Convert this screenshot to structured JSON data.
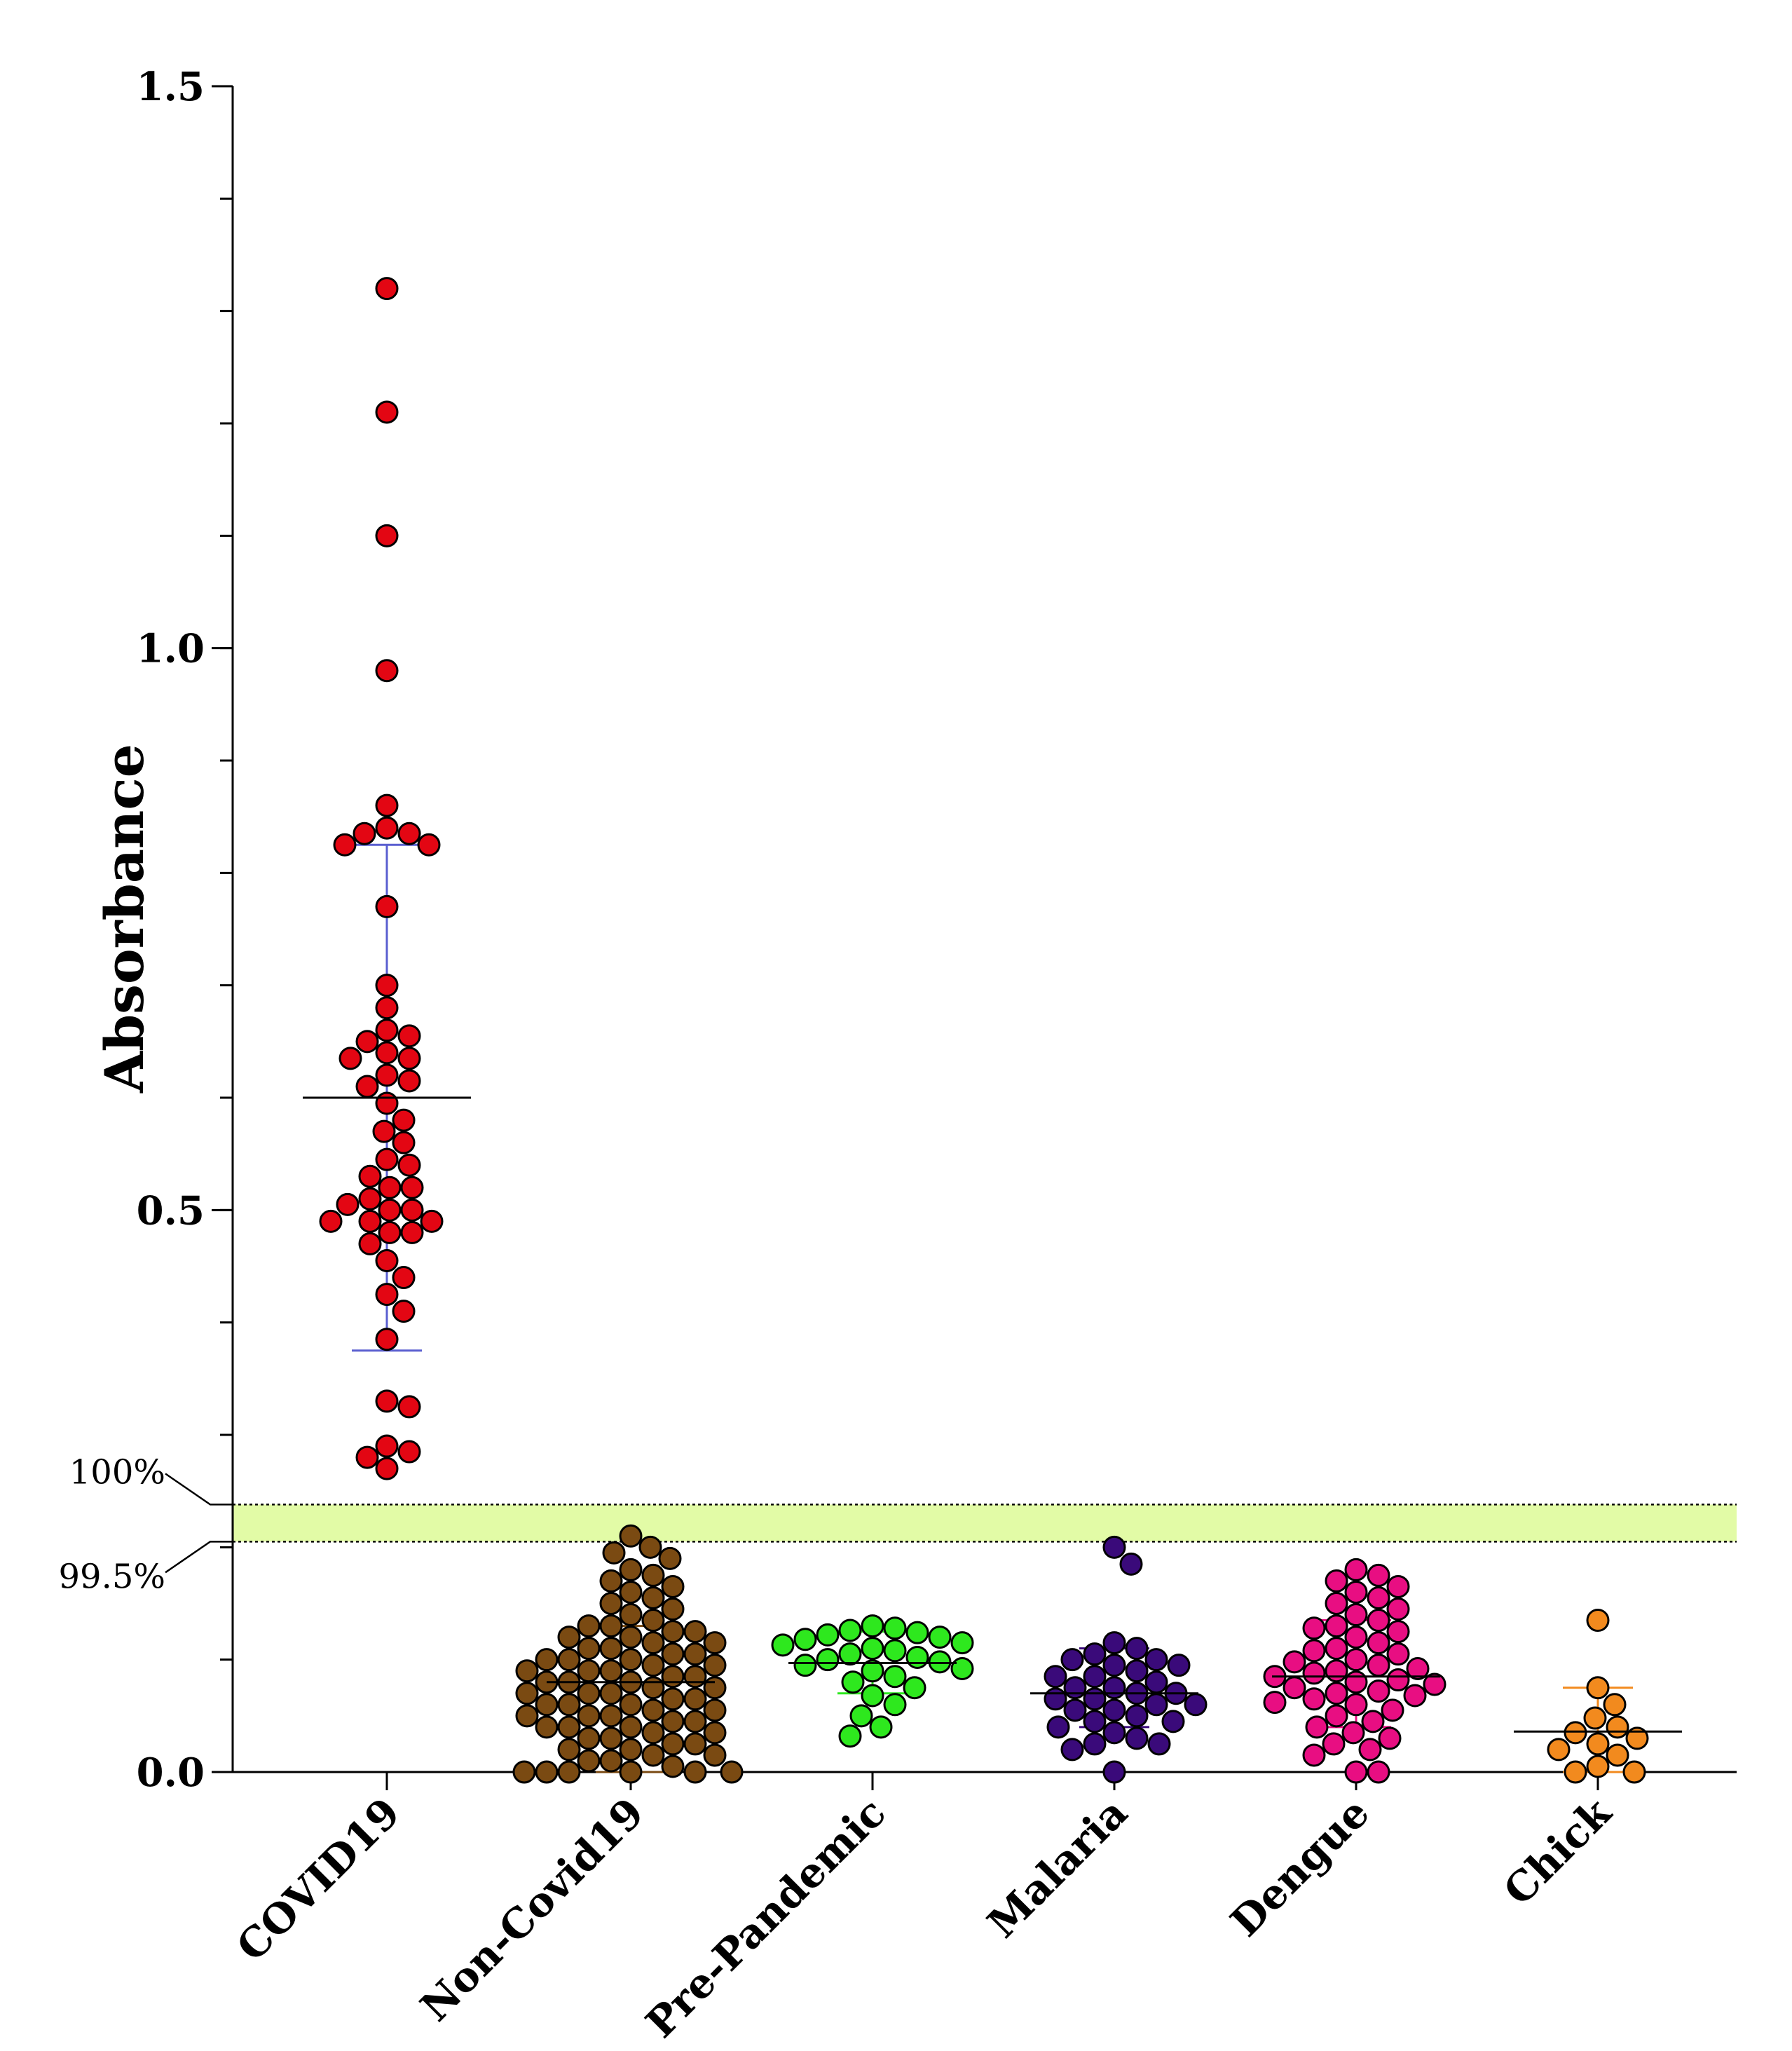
{
  "chart_data": {
    "type": "scatter",
    "title": "",
    "xlabel": "",
    "ylabel": "Absorbance",
    "ylim": [
      0,
      1.5
    ],
    "yticks": [
      {
        "value": 0.0,
        "label": "0.0"
      },
      {
        "value": 0.5,
        "label": "0.5"
      },
      {
        "value": 1.0,
        "label": "1.0"
      },
      {
        "value": 1.5,
        "label": "1.5"
      }
    ],
    "minor_tick_step": 0.1,
    "threshold_band": {
      "lower": 0.205,
      "upper": 0.238,
      "lower_label": "99.5%",
      "upper_label": "100%",
      "color": "#e2fba6"
    },
    "categories": [
      "COVID19",
      "Non-Covid19",
      "Pre-Pandemic",
      "Malaria",
      "Dengue",
      "Chick"
    ],
    "series": [
      {
        "name": "COVID19",
        "color": "#e30613",
        "mean": 0.6,
        "error_low": 0.375,
        "error_high": 0.825,
        "error_color": "#5a5fd0",
        "values": [
          1.32,
          1.21,
          1.1,
          0.98,
          0.86,
          0.835,
          0.835,
          0.84,
          0.825,
          0.825,
          0.77,
          0.7,
          0.68,
          0.66,
          0.655,
          0.65,
          0.64,
          0.635,
          0.635,
          0.62,
          0.615,
          0.61,
          0.595,
          0.58,
          0.57,
          0.56,
          0.545,
          0.54,
          0.53,
          0.52,
          0.52,
          0.51,
          0.505,
          0.5,
          0.5,
          0.49,
          0.49,
          0.49,
          0.48,
          0.48,
          0.47,
          0.455,
          0.44,
          0.425,
          0.41,
          0.385,
          0.33,
          0.325,
          0.29,
          0.285,
          0.28,
          0.27
        ]
      },
      {
        "name": "Non-Covid19",
        "color": "#7a4a12",
        "mean": 0.08,
        "error_low": 0.0,
        "error_high": 0.13,
        "error_color": "#7a4a12",
        "values": [
          0.21,
          0.2,
          0.195,
          0.19,
          0.18,
          0.175,
          0.17,
          0.165,
          0.16,
          0.155,
          0.15,
          0.145,
          0.14,
          0.135,
          0.13,
          0.13,
          0.125,
          0.125,
          0.12,
          0.12,
          0.115,
          0.115,
          0.11,
          0.11,
          0.105,
          0.105,
          0.1,
          0.1,
          0.1,
          0.095,
          0.095,
          0.09,
          0.09,
          0.09,
          0.085,
          0.085,
          0.08,
          0.08,
          0.08,
          0.075,
          0.075,
          0.07,
          0.07,
          0.07,
          0.065,
          0.065,
          0.06,
          0.06,
          0.06,
          0.055,
          0.055,
          0.05,
          0.05,
          0.05,
          0.045,
          0.045,
          0.04,
          0.04,
          0.04,
          0.035,
          0.035,
          0.03,
          0.03,
          0.025,
          0.025,
          0.02,
          0.02,
          0.015,
          0.015,
          0.01,
          0.01,
          0.005,
          0.0,
          0.0,
          0.0,
          0.0,
          0.0,
          0.0
        ]
      },
      {
        "name": "Pre-Pandemic",
        "color": "#2ee81e",
        "mean": 0.097,
        "error_low": 0.07,
        "error_high": 0.125,
        "error_color": "#2ee81e",
        "values": [
          0.13,
          0.128,
          0.126,
          0.124,
          0.122,
          0.12,
          0.118,
          0.115,
          0.113,
          0.11,
          0.108,
          0.105,
          0.102,
          0.1,
          0.098,
          0.095,
          0.092,
          0.09,
          0.085,
          0.08,
          0.075,
          0.068,
          0.06,
          0.05,
          0.04,
          0.032
        ]
      },
      {
        "name": "Malaria",
        "color": "#3a0a7a",
        "mean": 0.07,
        "error_low": 0.04,
        "error_high": 0.11,
        "error_color": "#3a0a7a",
        "values": [
          0.2,
          0.185,
          0.115,
          0.11,
          0.105,
          0.1,
          0.1,
          0.095,
          0.095,
          0.09,
          0.085,
          0.085,
          0.08,
          0.075,
          0.075,
          0.07,
          0.07,
          0.065,
          0.065,
          0.06,
          0.06,
          0.055,
          0.055,
          0.05,
          0.045,
          0.045,
          0.04,
          0.035,
          0.03,
          0.025,
          0.025,
          0.02,
          0.0
        ]
      },
      {
        "name": "Dengue",
        "color": "#e80e82",
        "mean": 0.085,
        "error_low": 0.04,
        "error_high": 0.135,
        "error_color": "#e80e82",
        "values": [
          0.18,
          0.175,
          0.17,
          0.165,
          0.16,
          0.155,
          0.15,
          0.145,
          0.14,
          0.135,
          0.13,
          0.128,
          0.125,
          0.12,
          0.115,
          0.11,
          0.108,
          0.105,
          0.1,
          0.098,
          0.095,
          0.092,
          0.09,
          0.088,
          0.085,
          0.082,
          0.08,
          0.078,
          0.075,
          0.072,
          0.07,
          0.068,
          0.065,
          0.062,
          0.06,
          0.055,
          0.05,
          0.045,
          0.04,
          0.035,
          0.03,
          0.025,
          0.02,
          0.015,
          0.0,
          0.0
        ]
      },
      {
        "name": "Chick",
        "color": "#f28a1e",
        "mean": 0.036,
        "error_low": 0.0,
        "error_high": 0.075,
        "error_color": "#f28a1e",
        "values": [
          0.135,
          0.075,
          0.06,
          0.048,
          0.04,
          0.035,
          0.03,
          0.025,
          0.02,
          0.015,
          0.005,
          0.0,
          0.0
        ]
      }
    ]
  }
}
